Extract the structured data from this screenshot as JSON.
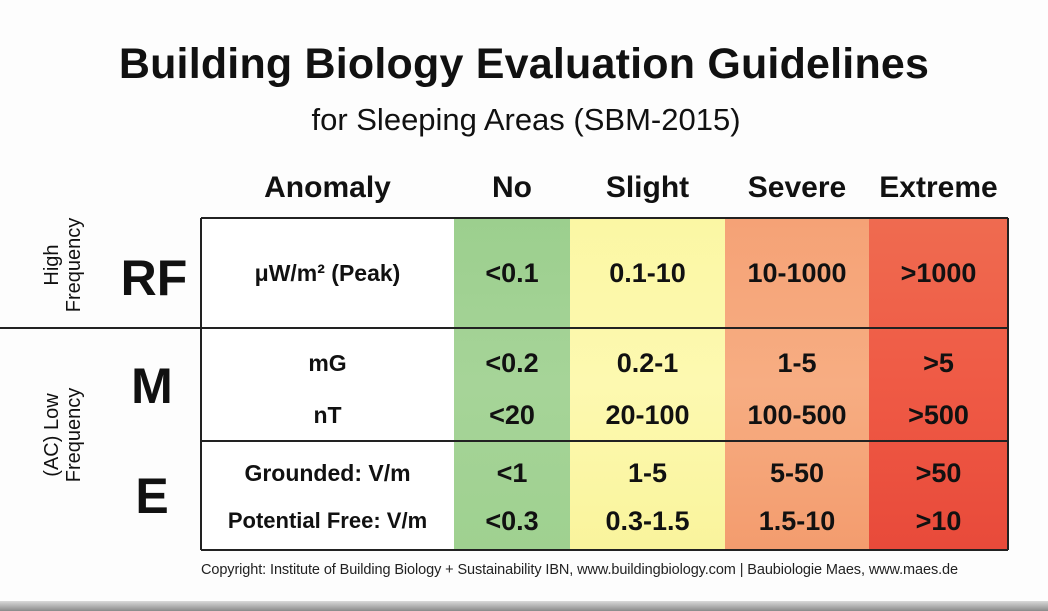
{
  "title": "Building Biology Evaluation Guidelines",
  "subtitle": "for Sleeping Areas (SBM-2015)",
  "columns": {
    "anomaly": "Anomaly",
    "no": "No",
    "slight": "Slight",
    "severe": "Severe",
    "extreme": "Extreme"
  },
  "side_labels": {
    "high_frequency_line1": "High",
    "high_frequency_line2": "Frequency",
    "low_frequency_line1": "(AC) Low",
    "low_frequency_line2": "Frequency"
  },
  "sections": {
    "rf": "RF",
    "m": "M",
    "e": "E"
  },
  "rows": [
    {
      "anomaly": "μW/m² (Peak)",
      "no": "<0.1",
      "slight": "0.1-10",
      "severe": "10-1000",
      "extreme": ">1000"
    },
    {
      "anomaly": "mG",
      "no": "<0.2",
      "slight": "0.2-1",
      "severe": "1-5",
      "extreme": ">5"
    },
    {
      "anomaly": "nT",
      "no": "<20",
      "slight": "20-100",
      "severe": "100-500",
      "extreme": ">500"
    },
    {
      "anomaly": "Grounded: V/m",
      "no": "<1",
      "slight": "1-5",
      "severe": "5-50",
      "extreme": ">50"
    },
    {
      "anomaly": "Potential Free: V/m",
      "no": "<0.3",
      "slight": "0.3-1.5",
      "severe": "1.5-10",
      "extreme": ">10"
    }
  ],
  "colors": {
    "no": "#a3d395",
    "slight": "#fcf8aa",
    "severe": "#f6a87c",
    "extreme": "#ec5a44"
  },
  "footer": "Copyright:  Institute of Building Biology + Sustainability IBN, www.buildingbiology.com  |  Baubiologie Maes, www.maes.de"
}
